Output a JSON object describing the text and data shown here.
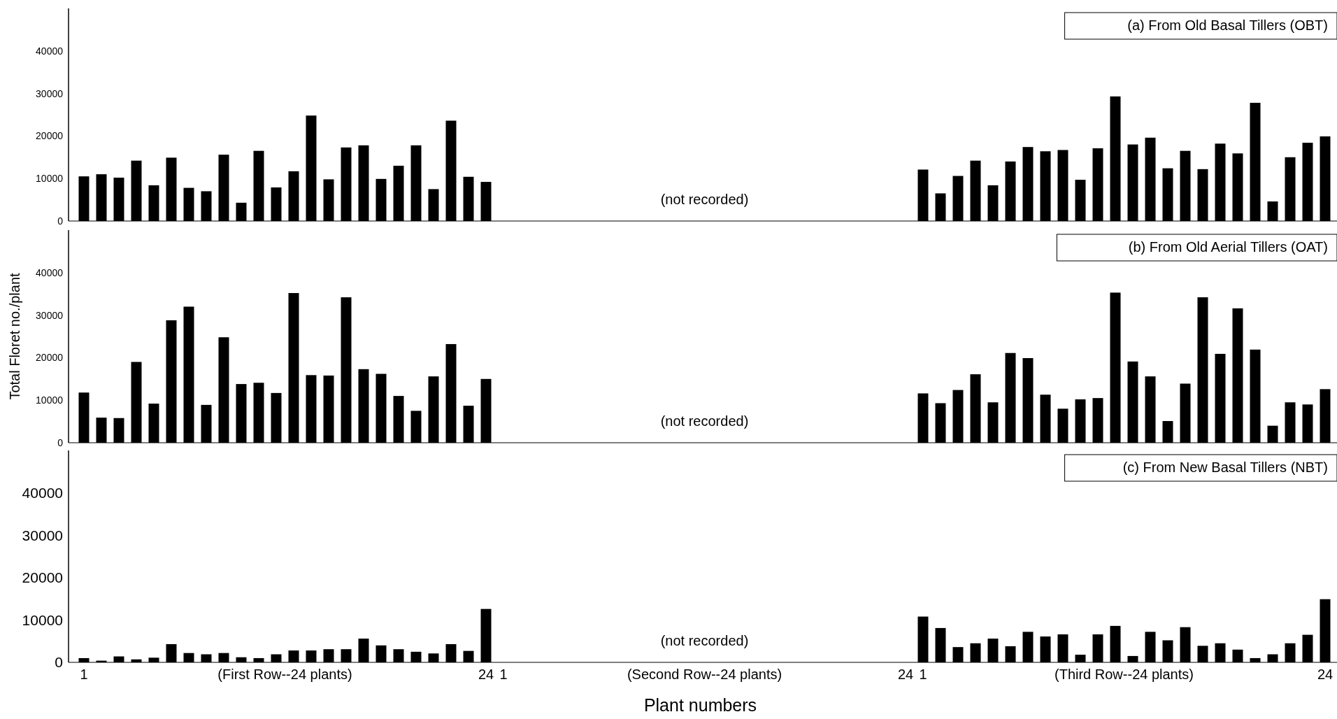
{
  "chart_data": [
    {
      "type": "bar",
      "title": "(a) From Old Basal Tillers (OBT)",
      "categories": [
        null,
        null,
        null,
        null,
        null,
        null,
        null,
        null,
        null,
        null,
        null,
        null,
        null,
        null,
        null,
        null,
        null,
        null,
        null,
        null,
        null,
        null,
        null,
        null,
        null,
        null,
        null,
        null,
        null,
        null,
        null,
        null,
        null,
        null,
        null,
        null,
        null,
        null,
        null,
        null,
        null,
        null,
        null,
        null,
        null,
        null,
        null,
        null,
        null,
        null,
        null,
        null,
        null,
        null,
        null,
        null,
        null,
        null,
        null,
        null,
        null,
        null,
        null,
        null,
        null,
        null,
        null,
        null,
        null,
        null,
        null,
        null
      ],
      "values": [
        10500,
        11000,
        10200,
        14200,
        8400,
        14900,
        7800,
        7000,
        15600,
        4300,
        16500,
        7900,
        11700,
        24800,
        9800,
        17300,
        17800,
        9900,
        13000,
        17800,
        7500,
        23600,
        10400,
        9200,
        null,
        null,
        null,
        null,
        null,
        null,
        null,
        null,
        null,
        null,
        null,
        null,
        null,
        null,
        null,
        null,
        null,
        null,
        null,
        null,
        null,
        null,
        null,
        null,
        12100,
        6500,
        10600,
        14200,
        8400,
        14000,
        17400,
        16400,
        16700,
        9700,
        17100,
        29300,
        18000,
        19600,
        12400,
        16500,
        12200,
        18200,
        15900,
        27800,
        4600,
        15000,
        18400,
        19900
      ],
      "color": "#000000",
      "ylim": [
        0,
        50000
      ],
      "yticks": [
        0,
        10000,
        20000,
        30000,
        40000
      ],
      "tick_labels": "y",
      "grid": false,
      "annotations": [
        "(not recorded)"
      ]
    },
    {
      "type": "bar",
      "title": "(b) From Old Aerial Tillers (OAT)",
      "ylabel": "Total Floret no./plant",
      "categories": [
        null,
        null,
        null,
        null,
        null,
        null,
        null,
        null,
        null,
        null,
        null,
        null,
        null,
        null,
        null,
        null,
        null,
        null,
        null,
        null,
        null,
        null,
        null,
        null,
        null,
        null,
        null,
        null,
        null,
        null,
        null,
        null,
        null,
        null,
        null,
        null,
        null,
        null,
        null,
        null,
        null,
        null,
        null,
        null,
        null,
        null,
        null,
        null,
        null,
        null,
        null,
        null,
        null,
        null,
        null,
        null,
        null,
        null,
        null,
        null,
        null,
        null,
        null,
        null,
        null,
        null,
        null,
        null,
        null,
        null,
        null,
        null
      ],
      "values": [
        11800,
        5900,
        5800,
        19000,
        9200,
        28800,
        32000,
        8900,
        24800,
        13800,
        14100,
        11700,
        35200,
        15900,
        15800,
        34200,
        17300,
        16200,
        11000,
        7500,
        15600,
        23200,
        8700,
        15000,
        null,
        null,
        null,
        null,
        null,
        null,
        null,
        null,
        null,
        null,
        null,
        null,
        null,
        null,
        null,
        null,
        null,
        null,
        null,
        null,
        null,
        null,
        null,
        null,
        11600,
        9300,
        12400,
        16100,
        9500,
        21100,
        19900,
        11300,
        8000,
        10200,
        10500,
        35300,
        19100,
        15600,
        5100,
        13900,
        34200,
        20900,
        31600,
        21900,
        4000,
        9500,
        9000,
        12600
      ],
      "color": "#000000",
      "ylim": [
        0,
        50000
      ],
      "yticks": [
        0,
        10000,
        20000,
        30000,
        40000
      ],
      "tick_labels": "y",
      "grid": false,
      "annotations": [
        "(not recorded)"
      ]
    },
    {
      "type": "bar",
      "title": "(c) From New Basal Tillers (NBT)",
      "xlabel": "Plant numbers",
      "categories": [
        "1",
        null,
        null,
        null,
        null,
        null,
        null,
        null,
        null,
        null,
        null,
        null,
        null,
        null,
        null,
        null,
        null,
        null,
        null,
        null,
        null,
        null,
        null,
        "24",
        "1",
        null,
        null,
        null,
        null,
        null,
        null,
        null,
        null,
        null,
        null,
        null,
        null,
        null,
        null,
        null,
        null,
        null,
        null,
        null,
        null,
        null,
        null,
        "24",
        "1",
        null,
        null,
        null,
        null,
        null,
        null,
        null,
        null,
        null,
        null,
        null,
        null,
        null,
        null,
        null,
        null,
        null,
        null,
        null,
        null,
        null,
        null,
        "24"
      ],
      "values": [
        1000,
        400,
        1400,
        700,
        1100,
        4300,
        2200,
        1900,
        2200,
        1200,
        1000,
        1900,
        2800,
        2800,
        3100,
        3100,
        5600,
        4000,
        3100,
        2500,
        2100,
        4300,
        2700,
        12600,
        null,
        null,
        null,
        null,
        null,
        null,
        null,
        null,
        null,
        null,
        null,
        null,
        null,
        null,
        null,
        null,
        null,
        null,
        null,
        null,
        null,
        null,
        null,
        null,
        10800,
        8100,
        3600,
        4500,
        5600,
        3800,
        7200,
        6100,
        6600,
        1800,
        6600,
        8600,
        1500,
        7200,
        5200,
        8300,
        3900,
        4500,
        3000,
        1000,
        1900,
        4500,
        6500,
        14900
      ],
      "color": "#000000",
      "ylim": [
        0,
        50000
      ],
      "yticks": [
        0,
        10000,
        20000,
        30000,
        40000
      ],
      "grid": false,
      "annotations": [
        "(not recorded)",
        "(First Row--24 plants)",
        "(Second Row--24 plants)",
        "(Third Row--24 plants)"
      ]
    }
  ]
}
